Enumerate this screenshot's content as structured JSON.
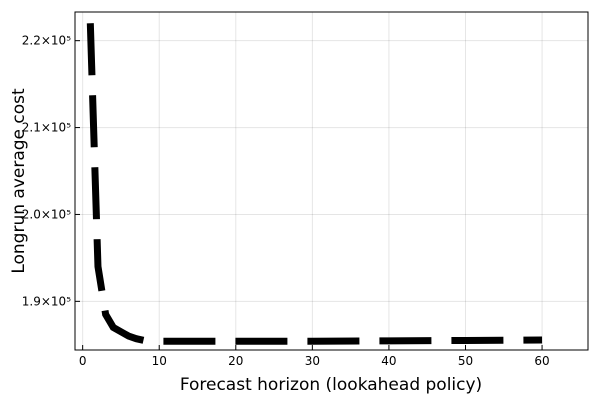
{
  "chart_data": {
    "type": "line",
    "xlabel": "Forecast horizon (lookahead policy)",
    "ylabel": "Longrun average cost",
    "x": [
      1,
      2,
      3,
      4,
      5,
      6,
      7,
      8,
      10,
      20,
      30,
      40,
      50,
      60
    ],
    "series": [
      {
        "color": "#000000",
        "values": [
          222000,
          194000,
          188500,
          187000,
          186500,
          186000,
          185700,
          185500,
          185400,
          185400,
          185400,
          185450,
          185500,
          185550
        ]
      }
    ],
    "xlim": [
      -1,
      66
    ],
    "ylim": [
      184400,
      223300
    ],
    "xticks": [
      0,
      10,
      20,
      30,
      40,
      50,
      60
    ],
    "yticks": [
      {
        "value": 190000,
        "label": "1.9×10⁵"
      },
      {
        "value": 200000,
        "label": "2.0×10⁵"
      },
      {
        "value": 210000,
        "label": "2.1×10⁵"
      },
      {
        "value": 220000,
        "label": "2.2×10⁵"
      }
    ],
    "grid": true
  }
}
